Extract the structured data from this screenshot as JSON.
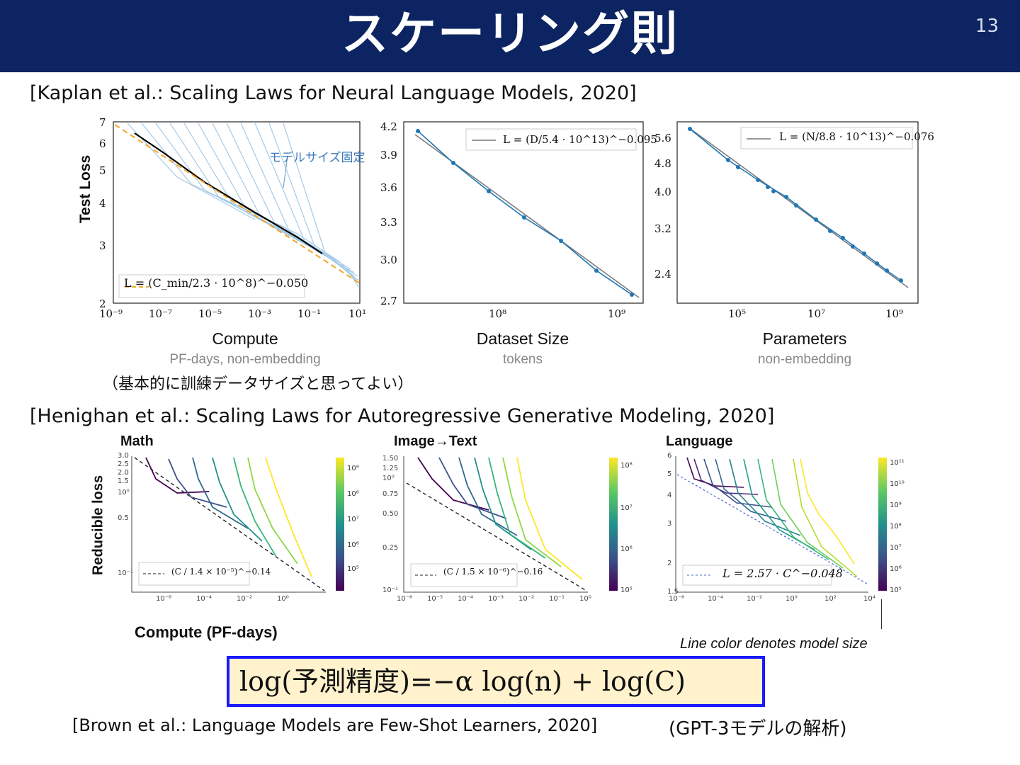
{
  "slide": {
    "title": "スケーリング則",
    "page_number": "13"
  },
  "kaplan": {
    "citation": "[Kaplan et al.: Scaling Laws for Neural Language Models, 2020]",
    "note": "（基本的に訓練データサイズと思ってよい）",
    "compute": {
      "ylabel": "Test Loss",
      "xlabel": "Compute",
      "xsub": "PF-days, non-embedding",
      "legend": "L = (C_min/2.3 · 10^8)^−0.050",
      "annotation": "モデルサイズ固定",
      "yticks": [
        "7",
        "6",
        "5",
        "4",
        "3",
        "2"
      ],
      "xticks": [
        "10⁻⁹",
        "10⁻⁷",
        "10⁻⁵",
        "10⁻³",
        "10⁻¹",
        "10¹"
      ]
    },
    "dataset": {
      "xlabel": "Dataset Size",
      "xsub": "tokens",
      "legend": "L = (D/5.4 · 10^13)^−0.095",
      "yticks": [
        "4.2",
        "3.9",
        "3.6",
        "3.3",
        "3.0",
        "2.7"
      ],
      "xticks": [
        "10⁸",
        "10⁹"
      ]
    },
    "params": {
      "xlabel": "Parameters",
      "xsub": "non-embedding",
      "legend": "L = (N/8.8 · 10^13)^−0.076",
      "yticks": [
        "5.6",
        "4.8",
        "4.0",
        "3.2",
        "2.4"
      ],
      "xticks": [
        "10⁵",
        "10⁷",
        "10⁹"
      ]
    }
  },
  "henighan": {
    "citation": "[Henighan et al.: Scaling Laws for Autoregressive Generative Modeling, 2020]",
    "ylabel": "Reducible loss",
    "xlabel": "Compute (PF-days)",
    "caption": "Line color denotes model size",
    "math": {
      "title": "Math",
      "legend": "(C / 1.4 × 10⁻⁵)^−0.14",
      "yticks": [
        "3.0",
        "2.5",
        "2.0",
        "1.5",
        "10⁰",
        "0.5",
        "10⁻¹"
      ],
      "xticks": [
        "10⁻⁶",
        "10⁻⁴",
        "10⁻²",
        "10⁰"
      ],
      "cbar": [
        "10⁹",
        "10⁸",
        "10⁷",
        "10⁶",
        "10⁵"
      ]
    },
    "image_text": {
      "title": "Image→Text",
      "legend": "(C / 1.5 × 10⁻⁶)^−0.16",
      "yticks": [
        "1.50",
        "1.25",
        "10⁰",
        "0.75",
        "0.50",
        "0.25",
        "10⁻¹"
      ],
      "xticks": [
        "10⁻⁶",
        "10⁻⁵",
        "10⁻⁴",
        "10⁻³",
        "10⁻²",
        "10⁻¹",
        "10⁰"
      ],
      "cbar": [
        "10⁸",
        "10⁷",
        "10⁶",
        "10⁵"
      ]
    },
    "language": {
      "title": "Language",
      "legend": "L = 2.57 · C^−0.048",
      "yticks": [
        "6",
        "5",
        "4",
        "3",
        "2",
        "1.5"
      ],
      "xticks": [
        "10⁻⁶",
        "10⁻⁴",
        "10⁻²",
        "10⁰",
        "10²",
        "10⁴"
      ],
      "cbar": [
        "10¹¹",
        "10¹⁰",
        "10⁹",
        "10⁸",
        "10⁷",
        "10⁶",
        "10⁵"
      ]
    }
  },
  "formula": {
    "text": "log(予測精度)=−α log(n) + log(C)"
  },
  "brown": {
    "citation": "[Brown et al.: Language Models are Few-Shot Learners, 2020]",
    "note": "(GPT-3モデルの解析)"
  },
  "colors": {
    "title_bg": "#0c2461",
    "formula_bg": "#fff2cc",
    "formula_border": "#1a1aff",
    "kaplan_line": "#1f77b4",
    "fit_orange": "#f5a623"
  }
}
